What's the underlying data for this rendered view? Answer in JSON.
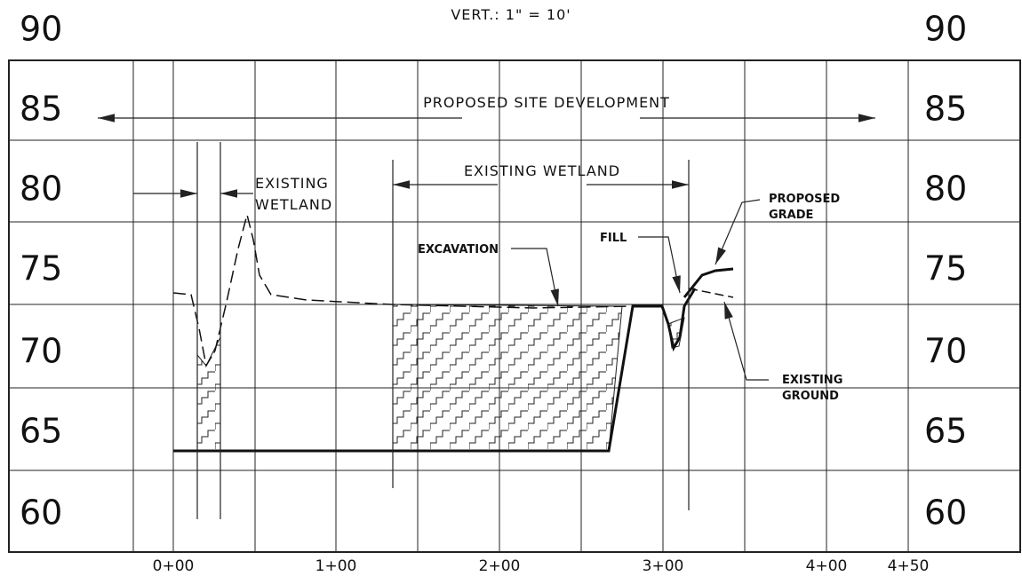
{
  "scale_note": "VERT.: 1\" = 10'",
  "elevations_left": [
    "90",
    "85",
    "80",
    "75",
    "70",
    "65",
    "60"
  ],
  "elevations_right": [
    "90",
    "85",
    "80",
    "75",
    "70",
    "65",
    "60"
  ],
  "stations": [
    "0+00",
    "1+00",
    "2+00",
    "3+00",
    "4+00",
    "4+50"
  ],
  "annotations": {
    "proposed_site_development": "PROPOSED SITE DEVELOPMENT",
    "existing_wetland_left": [
      "EXISTING",
      "WETLAND"
    ],
    "existing_wetland_center": "EXISTING WETLAND",
    "excavation": "EXCAVATION",
    "fill": "FILL",
    "proposed_grade": [
      "PROPOSED",
      "GRADE"
    ],
    "existing_ground": [
      "EXISTING",
      "GROUND"
    ]
  }
}
